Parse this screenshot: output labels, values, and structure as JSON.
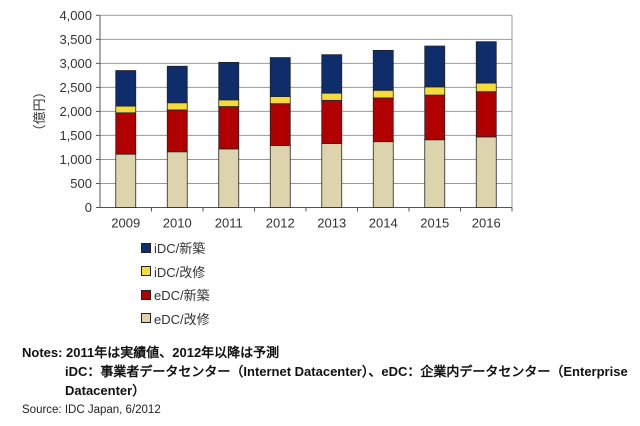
{
  "chart_data": {
    "type": "bar",
    "stacked": true,
    "categories": [
      "2009",
      "2010",
      "2011",
      "2012",
      "2013",
      "2014",
      "2015",
      "2016"
    ],
    "series": [
      {
        "name": "eDC/改修",
        "color": "#DDD4AE",
        "values": [
          1110,
          1160,
          1220,
          1290,
          1330,
          1370,
          1410,
          1470
        ]
      },
      {
        "name": "eDC/新築",
        "color": "#B00000",
        "values": [
          860,
          870,
          880,
          870,
          900,
          910,
          930,
          940
        ]
      },
      {
        "name": "iDC/改修",
        "color": "#F5DA3C",
        "values": [
          140,
          150,
          140,
          150,
          150,
          160,
          170,
          180
        ]
      },
      {
        "name": "iDC/新築",
        "color": "#0E2D6A",
        "values": [
          740,
          760,
          780,
          810,
          800,
          830,
          850,
          860
        ]
      }
    ],
    "ylabel": "（億円）",
    "ylim": [
      0,
      4000
    ],
    "yticks": [
      "0",
      "500",
      "1,000",
      "1,500",
      "2,000",
      "2,500",
      "3,000",
      "3,500",
      "4,000"
    ],
    "grid": true,
    "legend_position": "bottom-left",
    "legend_order": [
      "iDC/新築",
      "iDC/改修",
      "eDC/新築",
      "eDC/改修"
    ]
  },
  "notes": {
    "line1": "Notes: 2011年は実績値、2012年以降は予測",
    "line2": "iDC：事業者データセンター（Internet Datacenter）、eDC：企業内データセンター（Enterprise",
    "line3": "Datacenter）"
  },
  "source": "Source: IDC Japan, 6/2012"
}
